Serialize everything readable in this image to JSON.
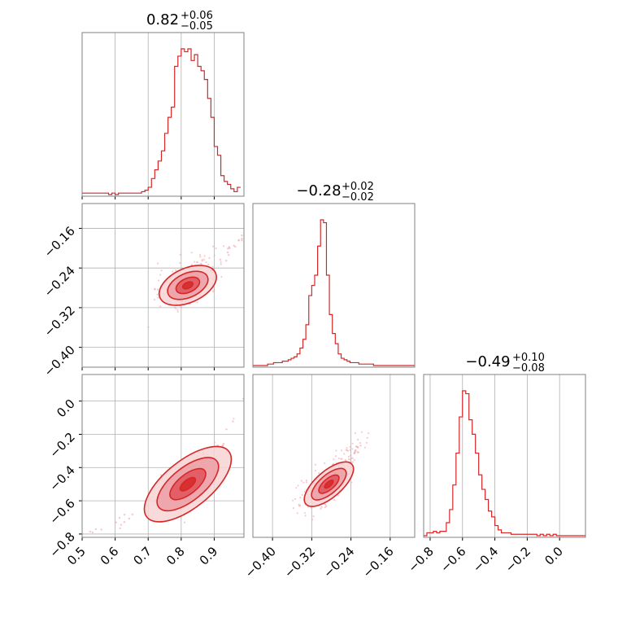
{
  "colors": {
    "line": "#d62728",
    "fill_dark": "#e0525a",
    "fill_mid": "#ec9ea3",
    "fill_light": "#f7d3d5",
    "scatter": "#f0a3a8",
    "grid": "#b0b0b0",
    "frame": "#808080"
  },
  "chart_data": [
    {
      "type": "histogram",
      "panel": "param-1-marginal",
      "title": {
        "main": "0.82",
        "sup": "+0.06",
        "sub": "−0.05"
      },
      "xlim": [
        0.5,
        0.99
      ],
      "xticks": [
        0.5,
        0.6,
        0.7,
        0.8,
        0.9
      ],
      "bin_edges_start": 0.5,
      "bin_width": 0.01,
      "counts": [
        1,
        1,
        1,
        1,
        1,
        1,
        1,
        1,
        0,
        1,
        0,
        1,
        1,
        1,
        1,
        1,
        1,
        1,
        2,
        3,
        5,
        11,
        17,
        23,
        30,
        42,
        53,
        60,
        88,
        95,
        100,
        98,
        100,
        92,
        96,
        88,
        85,
        79,
        66,
        53,
        33,
        27,
        13,
        9,
        7,
        4,
        2,
        5
      ]
    },
    {
      "type": "scatter+contour",
      "panel": "param-1-vs-param-2",
      "xlim": [
        0.5,
        0.99
      ],
      "ylim": [
        -0.44,
        -0.11
      ],
      "xticks": [
        0.5,
        0.6,
        0.7,
        0.8,
        0.9
      ],
      "yticks": [
        -0.16,
        -0.24,
        -0.32,
        -0.4
      ],
      "ytick_labels": [
        "−0.16",
        "−0.24",
        "−0.32",
        "−0.40"
      ],
      "mode": {
        "x": 0.82,
        "y": -0.275
      },
      "trend": [
        [
          0.72,
          -0.29
        ],
        [
          0.82,
          -0.275
        ],
        [
          0.92,
          -0.23
        ],
        [
          0.99,
          -0.17
        ]
      ]
    },
    {
      "type": "histogram",
      "panel": "param-2-marginal",
      "title": {
        "main": "−0.28",
        "sup": "+0.02",
        "sub": "−0.02"
      },
      "xlim": [
        -0.44,
        -0.11
      ],
      "bin_edges_start": -0.44,
      "bin_width": 0.006,
      "counts": [
        0,
        0,
        0,
        0,
        0,
        1,
        1,
        2,
        2,
        2,
        3,
        3,
        4,
        5,
        6,
        8,
        12,
        18,
        28,
        48,
        55,
        62,
        82,
        100,
        98,
        62,
        35,
        22,
        15,
        8,
        5,
        4,
        3,
        2,
        2,
        2,
        1,
        1,
        1,
        1,
        1,
        0,
        0,
        0,
        0,
        0,
        0,
        0,
        0,
        0,
        0,
        0,
        0,
        0,
        0
      ]
    },
    {
      "type": "scatter+contour",
      "panel": "param-1-vs-param-3",
      "xlim": [
        0.5,
        0.99
      ],
      "ylim": [
        -0.82,
        0.16
      ],
      "xticks": [
        0.5,
        0.6,
        0.7,
        0.8,
        0.9
      ],
      "xtick_labels": [
        "0.5",
        "0.6",
        "0.7",
        "0.8",
        "0.9"
      ],
      "yticks": [
        0.0,
        -0.2,
        -0.4,
        -0.6,
        -0.8
      ],
      "ytick_labels": [
        "0.0",
        "−0.2",
        "−0.4",
        "−0.6",
        "−0.8"
      ],
      "mode": {
        "x": 0.82,
        "y": -0.5
      },
      "trend": [
        [
          0.52,
          -0.8
        ],
        [
          0.62,
          -0.72
        ],
        [
          0.72,
          -0.6
        ],
        [
          0.82,
          -0.48
        ],
        [
          0.92,
          -0.28
        ],
        [
          0.99,
          0.05
        ]
      ]
    },
    {
      "type": "scatter+contour",
      "panel": "param-2-vs-param-3",
      "xlim": [
        -0.44,
        -0.11
      ],
      "ylim": [
        -0.82,
        0.16
      ],
      "xticks": [
        -0.4,
        -0.32,
        -0.24,
        -0.16
      ],
      "xtick_labels": [
        "−0.40",
        "−0.32",
        "−0.24",
        "−0.16"
      ],
      "mode": {
        "x": -0.285,
        "y": -0.5
      },
      "trend": [
        [
          -0.33,
          -0.58
        ],
        [
          -0.285,
          -0.5
        ],
        [
          -0.255,
          -0.4
        ],
        [
          -0.22,
          -0.25
        ]
      ]
    },
    {
      "type": "histogram",
      "panel": "param-3-marginal",
      "title": {
        "main": "−0.49",
        "sup": "+0.10",
        "sub": "−0.08"
      },
      "xlim": [
        -0.84,
        0.16
      ],
      "xticks": [
        -0.8,
        -0.6,
        -0.4,
        -0.2,
        0.0
      ],
      "xtick_labels": [
        "−0.8",
        "−0.6",
        "−0.4",
        "−0.2",
        "0.0"
      ],
      "bin_edges_start": -0.84,
      "bin_width": 0.02,
      "counts": [
        0,
        2,
        2,
        3,
        2,
        3,
        3,
        9,
        18,
        35,
        57,
        82,
        100,
        98,
        80,
        70,
        57,
        42,
        32,
        25,
        17,
        13,
        7,
        4,
        2,
        2,
        2,
        1,
        1,
        1,
        1,
        1,
        1,
        1,
        1,
        0,
        1,
        0,
        1,
        0,
        1,
        0,
        0,
        0,
        0,
        0,
        0,
        0,
        0,
        0
      ]
    }
  ]
}
